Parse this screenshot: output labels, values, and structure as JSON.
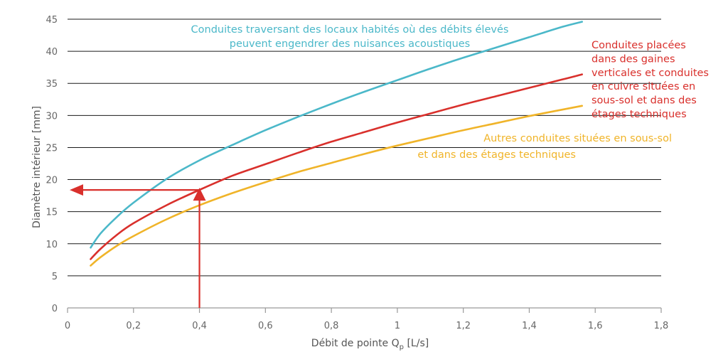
{
  "chart_data": {
    "type": "line",
    "xlabel": "Débit de pointe Q",
    "xlabel_subscript": "p",
    "xlabel_suffix": " [L/s]",
    "ylabel": "Diamètre intérieur [mm]",
    "xlim": [
      0,
      1.8
    ],
    "ylim": [
      0,
      45
    ],
    "x_ticks": [
      "0",
      "0,2",
      "0,4",
      "0,6",
      "0,8",
      "1",
      "1,2",
      "1,4",
      "1,6",
      "1,8"
    ],
    "y_ticks": [
      "0",
      "5",
      "10",
      "15",
      "20",
      "25",
      "30",
      "35",
      "40",
      "45"
    ],
    "grid": "horizontal",
    "series": [
      {
        "color": "#4bb8c9",
        "label_lines": [
          "Conduites traversant des locaux habités où des débits élevés",
          "peuvent engendrer des nuisances acoustiques"
        ],
        "x": [
          0.07,
          0.1,
          0.15,
          0.2,
          0.3,
          0.4,
          0.5,
          0.6,
          0.7,
          0.8,
          0.9,
          1.0,
          1.1,
          1.2,
          1.3,
          1.4,
          1.5,
          1.56
        ],
        "values": [
          9.4,
          11.6,
          14.2,
          16.4,
          20.1,
          23.0,
          25.4,
          27.7,
          29.8,
          31.8,
          33.7,
          35.5,
          37.3,
          39.0,
          40.6,
          42.2,
          43.8,
          44.6
        ]
      },
      {
        "color": "#d9302c",
        "label_lines": [
          "Conduites placées",
          "dans des gaines",
          "verticales et conduites",
          "en cuivre situées en",
          "sous-sol et dans des",
          "étages techniques"
        ],
        "x": [
          0.07,
          0.1,
          0.15,
          0.2,
          0.3,
          0.4,
          0.5,
          0.6,
          0.7,
          0.8,
          0.9,
          1.0,
          1.1,
          1.2,
          1.3,
          1.4,
          1.5,
          1.56
        ],
        "values": [
          7.6,
          9.2,
          11.4,
          13.2,
          16.0,
          18.4,
          20.6,
          22.4,
          24.2,
          25.9,
          27.4,
          28.9,
          30.3,
          31.7,
          33.0,
          34.3,
          35.6,
          36.4
        ]
      },
      {
        "color": "#f0b429",
        "label_lines": [
          "Autres conduites situées en sous-sol",
          "et dans des étages techniques"
        ],
        "x": [
          0.07,
          0.1,
          0.15,
          0.2,
          0.3,
          0.4,
          0.5,
          0.6,
          0.7,
          0.8,
          0.9,
          1.0,
          1.1,
          1.2,
          1.3,
          1.4,
          1.5,
          1.56
        ],
        "values": [
          6.6,
          7.9,
          9.7,
          11.2,
          13.8,
          16.0,
          17.9,
          19.6,
          21.2,
          22.6,
          24.0,
          25.3,
          26.5,
          27.7,
          28.8,
          29.9,
          30.9,
          31.5
        ]
      }
    ],
    "reading_example": {
      "x": 0.4,
      "y": 18.5,
      "color": "#d9302c"
    }
  }
}
